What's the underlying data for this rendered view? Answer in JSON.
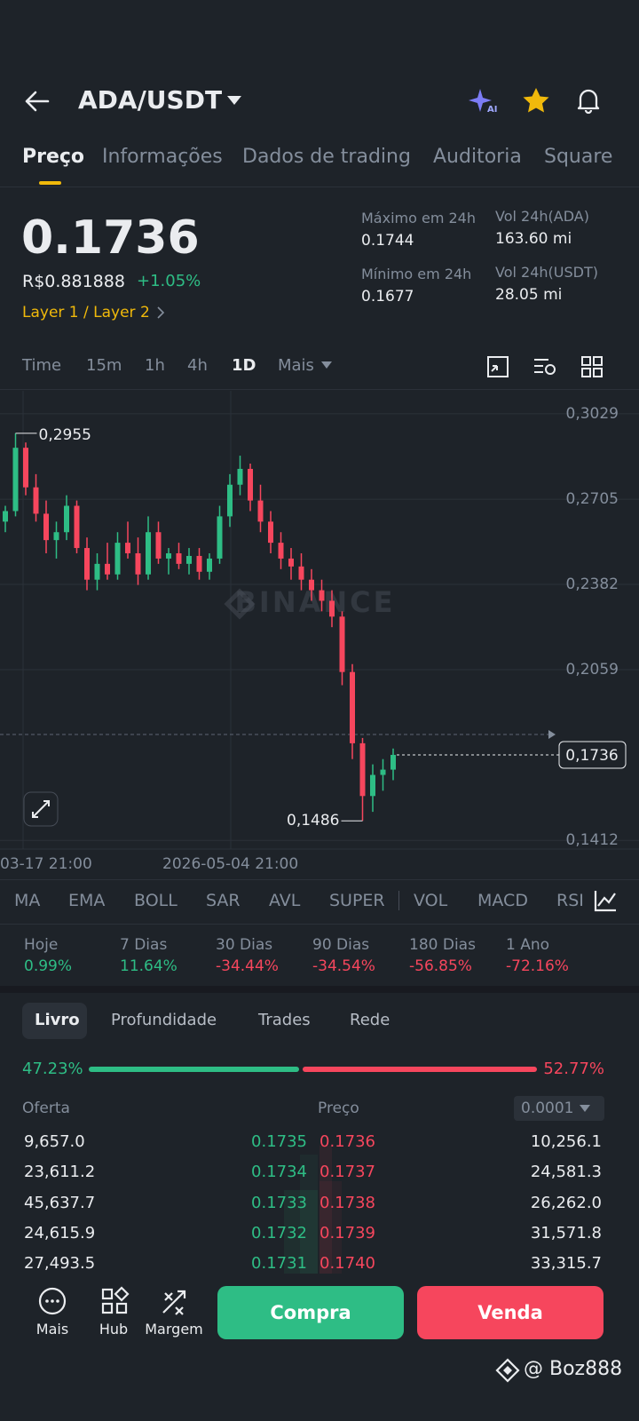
{
  "header": {
    "pair": "ADA/USDT"
  },
  "tabs": [
    "Preço",
    "Informações",
    "Dados de trading",
    "Auditoria",
    "Square"
  ],
  "price": {
    "last": "0.1736",
    "fiat": "R$0.881888",
    "change": "+1.05%",
    "tag": "Layer 1 / Layer 2"
  },
  "stats": [
    {
      "label": "Máximo em 24h",
      "value": "0.1744"
    },
    {
      "label": "Vol 24h(ADA)",
      "value": "163.60 mi"
    },
    {
      "label": "Mínimo em 24h",
      "value": "0.1677"
    },
    {
      "label": "Vol 24h(USDT)",
      "value": "28.05 mi"
    }
  ],
  "intervals": [
    "Time",
    "15m",
    "1h",
    "4h",
    "1D",
    "Mais"
  ],
  "chart_data": {
    "type": "candlestick",
    "watermark": "BINANCE",
    "x_labels": [
      "03-17 21:00",
      "2026-05-04 21:00"
    ],
    "ylim": [
      0.1379,
      0.3116
    ],
    "yticks": [
      {
        "value": 0.3029,
        "label": "0,3029"
      },
      {
        "value": 0.2705,
        "label": "0,2705"
      },
      {
        "value": 0.2382,
        "label": "0,2382"
      },
      {
        "value": 0.2059,
        "label": "0,2059"
      },
      {
        "value": 0.1412,
        "label": "0,1412"
      }
    ],
    "max_label": {
      "value": 0.2955,
      "label": "0,2955"
    },
    "min_label": {
      "value": 0.1486,
      "label": "0,1486"
    },
    "last_price": {
      "value": 0.1736,
      "label": "0,1736"
    },
    "open": [
      0.262,
      0.266,
      0.29,
      0.275,
      0.265,
      0.255,
      0.258,
      0.268,
      0.252,
      0.24,
      0.246,
      0.242,
      0.254,
      0.25,
      0.242,
      0.258,
      0.248,
      0.25,
      0.246,
      0.249,
      0.243,
      0.248,
      0.264,
      0.276,
      0.282,
      0.27,
      0.262,
      0.254,
      0.248,
      0.245,
      0.24,
      0.236,
      0.232,
      0.226,
      0.205,
      0.178,
      0.158,
      0.166,
      0.168
    ],
    "high": [
      0.268,
      0.2955,
      0.292,
      0.28,
      0.27,
      0.262,
      0.272,
      0.27,
      0.256,
      0.25,
      0.254,
      0.258,
      0.262,
      0.256,
      0.264,
      0.262,
      0.252,
      0.254,
      0.252,
      0.252,
      0.25,
      0.268,
      0.28,
      0.287,
      0.284,
      0.276,
      0.266,
      0.258,
      0.252,
      0.25,
      0.244,
      0.24,
      0.236,
      0.228,
      0.208,
      0.18,
      0.17,
      0.172,
      0.176
    ],
    "low": [
      0.258,
      0.264,
      0.272,
      0.262,
      0.25,
      0.248,
      0.255,
      0.25,
      0.236,
      0.236,
      0.24,
      0.24,
      0.248,
      0.238,
      0.24,
      0.246,
      0.242,
      0.244,
      0.242,
      0.24,
      0.24,
      0.246,
      0.26,
      0.272,
      0.266,
      0.258,
      0.25,
      0.244,
      0.24,
      0.236,
      0.232,
      0.228,
      0.222,
      0.2,
      0.172,
      0.1486,
      0.152,
      0.16,
      0.164
    ],
    "close": [
      0.266,
      0.29,
      0.275,
      0.265,
      0.255,
      0.258,
      0.268,
      0.252,
      0.24,
      0.246,
      0.242,
      0.254,
      0.25,
      0.242,
      0.258,
      0.248,
      0.25,
      0.246,
      0.249,
      0.243,
      0.248,
      0.264,
      0.276,
      0.282,
      0.27,
      0.262,
      0.254,
      0.248,
      0.245,
      0.24,
      0.236,
      0.232,
      0.226,
      0.205,
      0.178,
      0.158,
      0.166,
      0.168,
      0.1736
    ],
    "up_color": "#2ebd85",
    "down_color": "#f6465d"
  },
  "indicators": [
    "MA",
    "EMA",
    "BOLL",
    "SAR",
    "AVL",
    "SUPER",
    "VOL",
    "MACD",
    "RSI"
  ],
  "performance": [
    {
      "label": "Hoje",
      "value": "0.99%"
    },
    {
      "label": "7 Dias",
      "value": "11.64%"
    },
    {
      "label": "30 Dias",
      "value": "-34.44%"
    },
    {
      "label": "90 Dias",
      "value": "-34.54%"
    },
    {
      "label": "180 Dias",
      "value": "-56.85%"
    },
    {
      "label": "1 Ano",
      "value": "-72.16%"
    }
  ],
  "order_book": {
    "tabs": [
      "Livro",
      "Profundidade",
      "Trades",
      "Rede"
    ],
    "ratio": {
      "values": [
        47.23,
        52.77
      ],
      "value_labels": [
        "47.23%",
        "52.77%"
      ]
    },
    "headers": [
      "Oferta",
      "Preço"
    ],
    "precision": "0.0001",
    "rows": [
      [
        "9,657.0",
        "0.1735",
        "0.1736",
        "10,256.1"
      ],
      [
        "23,611.2",
        "0.1734",
        "0.1737",
        "24,581.3"
      ],
      [
        "45,637.7",
        "0.1733",
        "0.1738",
        "26,262.0"
      ],
      [
        "24,615.9",
        "0.1732",
        "0.1739",
        "31,571.8"
      ],
      [
        "27,493.5",
        "0.1731",
        "0.1740",
        "33,315.7"
      ]
    ]
  },
  "bottom_bar": {
    "items": [
      "Mais",
      "Hub",
      "Margem"
    ],
    "buy": "Compra",
    "sell": "Venda"
  },
  "watermark": "@ Boz888"
}
